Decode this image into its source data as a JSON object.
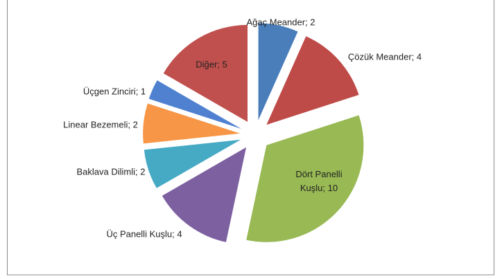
{
  "chart_data": {
    "type": "pie",
    "values": [
      2,
      4,
      10,
      4,
      2,
      2,
      1,
      5
    ],
    "value_labels": [
      "Ağaç Meander; 2",
      "Çözük Meander; 4",
      "Dört Panelli Kuşlu; 10",
      "Üç Panelli Kuşlu; 4",
      "Baklava Dilimli; 2",
      "Linear Bezemeli; 2",
      "Üçgen Zinciri; 1",
      "Diğer; 5"
    ],
    "colors": [
      "#4a7ebb",
      "#be4b48",
      "#98b954",
      "#7d60a0",
      "#46aac5",
      "#f79646",
      "#4f81d0",
      "#c0504d"
    ]
  }
}
